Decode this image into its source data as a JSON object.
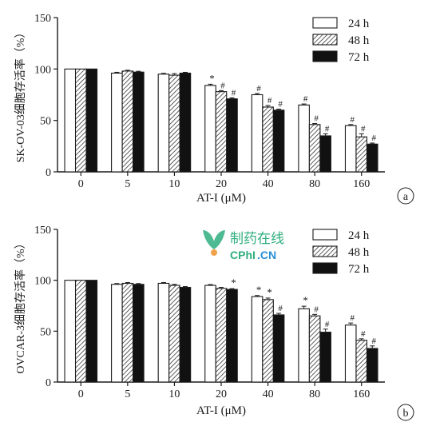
{
  "colors": {
    "axis": "#1a1a1a",
    "bar_open": "#ffffff",
    "bar_solid": "#111111",
    "watermark_green": "#2fae7e",
    "watermark_blue": "#2a8fd6",
    "watermark_orange": "#f0a24a"
  },
  "watermark": {
    "cn_text": "制药在线",
    "en_text_main": "CPhI",
    "en_text_suffix": ".CN"
  },
  "chart_data": [
    {
      "type": "bar",
      "panel_label": "a",
      "ylabel": "SK-OV-03细胞存活率（%）",
      "xlabel": "AT-I (μM)",
      "ylim": [
        0,
        150
      ],
      "yticks": [
        0,
        50,
        100,
        150
      ],
      "categories": [
        "0",
        "5",
        "10",
        "20",
        "40",
        "80",
        "160"
      ],
      "legend_position": "top-right",
      "series": [
        {
          "name": "24 h",
          "fill": "open",
          "values": [
            100,
            96,
            95,
            84,
            75,
            65,
            45
          ],
          "errors": [
            0,
            0.8,
            0.8,
            1.2,
            1.2,
            1,
            1
          ],
          "marks": [
            "",
            "",
            "",
            "*",
            "#",
            "#",
            "#"
          ]
        },
        {
          "name": "48 h",
          "fill": "hatch",
          "values": [
            100,
            98,
            94,
            78,
            63,
            46,
            34
          ],
          "errors": [
            0,
            0.8,
            1.5,
            1,
            1.5,
            1,
            3
          ],
          "marks": [
            "",
            "",
            "",
            "#",
            "#",
            "#",
            "#"
          ]
        },
        {
          "name": "72 h",
          "fill": "solid",
          "values": [
            100,
            97,
            96,
            71,
            60,
            35,
            27
          ],
          "errors": [
            0,
            0.8,
            0.8,
            1,
            1,
            2,
            1
          ],
          "marks": [
            "",
            "",
            "",
            "#",
            "#",
            "#",
            "#"
          ]
        }
      ]
    },
    {
      "type": "bar",
      "panel_label": "b",
      "ylabel": "OVCAR-3细胞存活率（%）",
      "xlabel": "AT-I (μM)",
      "ylim": [
        0,
        150
      ],
      "yticks": [
        0,
        50,
        100,
        150
      ],
      "categories": [
        "0",
        "5",
        "10",
        "20",
        "40",
        "80",
        "160"
      ],
      "legend_position": "top-right",
      "series": [
        {
          "name": "24 h",
          "fill": "open",
          "values": [
            100,
            96,
            97,
            95,
            84,
            72,
            56
          ],
          "errors": [
            0,
            0.8,
            0.8,
            0.8,
            1,
            2.5,
            2
          ],
          "marks": [
            "",
            "",
            "",
            "",
            "*",
            "*",
            "#"
          ]
        },
        {
          "name": "48 h",
          "fill": "hatch",
          "values": [
            100,
            97,
            95,
            92,
            81,
            65,
            41
          ],
          "errors": [
            0,
            0.8,
            1,
            1,
            1.5,
            1.5,
            1.5
          ],
          "marks": [
            "",
            "",
            "",
            "",
            "*",
            "#",
            "#"
          ]
        },
        {
          "name": "72 h",
          "fill": "solid",
          "values": [
            100,
            96,
            93,
            91,
            66,
            49,
            33
          ],
          "errors": [
            0,
            0.8,
            0.8,
            0.8,
            1.5,
            3,
            2.5
          ],
          "marks": [
            "",
            "",
            "",
            "*",
            "#",
            "#",
            "#"
          ]
        }
      ]
    }
  ]
}
